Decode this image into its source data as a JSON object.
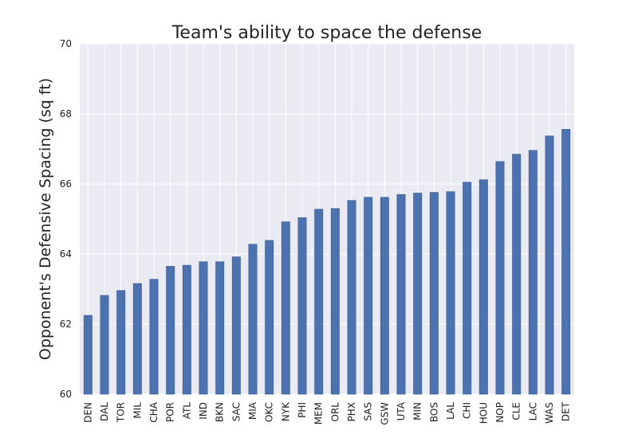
{
  "chart_data": {
    "type": "bar",
    "title": "Team's ability to space the defense",
    "xlabel": "",
    "ylabel": "Opponent's Defensive Spacing (sq ft)",
    "ylim": [
      60,
      70
    ],
    "yticks": [
      60,
      62,
      64,
      66,
      68,
      70
    ],
    "grid": true,
    "legend": "none",
    "colors": {
      "bar": "#4c72b0",
      "bar_edge": "#3a5a8f",
      "plot_bg": "#eaeaf2",
      "grid": "#ffffff",
      "text": "#222222"
    },
    "categories": [
      "DEN",
      "DAL",
      "TOR",
      "MIL",
      "CHA",
      "POR",
      "ATL",
      "IND",
      "BKN",
      "SAC",
      "MIA",
      "OKC",
      "NYK",
      "PHI",
      "MEM",
      "ORL",
      "PHX",
      "SAS",
      "GSW",
      "UTA",
      "MIN",
      "BOS",
      "LAL",
      "CHI",
      "HOU",
      "NOP",
      "CLE",
      "LAC",
      "WAS",
      "DET"
    ],
    "values": [
      62.25,
      62.82,
      62.96,
      63.16,
      63.28,
      63.65,
      63.68,
      63.78,
      63.78,
      63.92,
      64.28,
      64.39,
      64.92,
      65.04,
      65.28,
      65.3,
      65.53,
      65.62,
      65.62,
      65.7,
      65.74,
      65.76,
      65.78,
      66.05,
      66.12,
      66.64,
      66.85,
      66.96,
      67.37,
      67.56
    ]
  }
}
